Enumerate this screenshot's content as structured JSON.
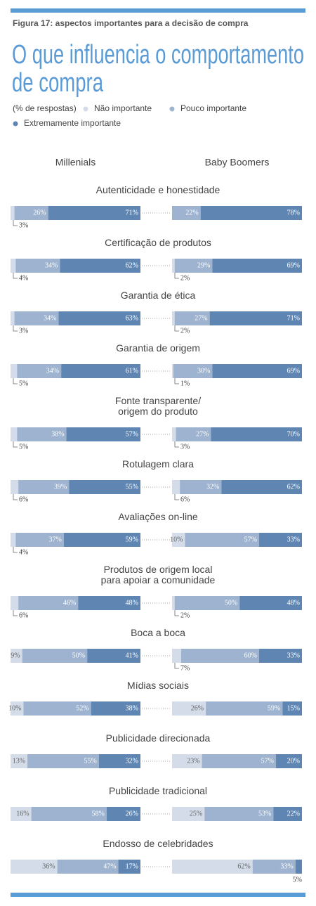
{
  "chart_data": {
    "type": "stacked-bar",
    "caption": "Figura 17: aspectos importantes para a decisão de compra",
    "title": [
      "O que influencia o comportamento",
      "de compra"
    ],
    "legend_title": "(% de respostas)",
    "legend": [
      {
        "name": "Não importante",
        "color": "#d3dce8"
      },
      {
        "name": "Pouco importante",
        "color": "#9db3cf"
      },
      {
        "name": "Extremamente importante",
        "color": "#5f86b3"
      }
    ],
    "categories": [
      "Autenticidade e honestidade",
      "Certificação de produtos",
      "Garantia de ética",
      "Garantia de origem",
      "Fonte transparente/\norigem do produto",
      "Rotulagem clara",
      "Avaliações on-line",
      "Produtos de origem local\npara apoiar a comunidade",
      "Boca a boca",
      "Mídias sociais",
      "Publicidade direcionada",
      "Publicidade tradicional",
      "Endosso de celebridades"
    ],
    "panels": [
      {
        "name": "Millenials",
        "series": [
          {
            "values": [
              3,
              4,
              3,
              5,
              5,
              6,
              4,
              6,
              9,
              10,
              13,
              16,
              36
            ],
            "value_labels": [
              "3%",
              "4%",
              "3%",
              "5%",
              "5%",
              "6%",
              "4%",
              "6%",
              "9%",
              "10%",
              "13%",
              "16%",
              "36%"
            ]
          },
          {
            "values": [
              26,
              34,
              34,
              34,
              38,
              39,
              37,
              46,
              50,
              52,
              55,
              58,
              47
            ],
            "value_labels": [
              "26%",
              "34%",
              "34%",
              "34%",
              "38%",
              "39%",
              "37%",
              "46%",
              "50%",
              "52%",
              "55%",
              "58%",
              "47%"
            ]
          },
          {
            "values": [
              71,
              62,
              63,
              61,
              57,
              55,
              59,
              48,
              41,
              38,
              32,
              26,
              17
            ],
            "value_labels": [
              "71%",
              "62%",
              "63%",
              "61%",
              "57%",
              "55%",
              "59%",
              "48%",
              "41%",
              "38%",
              "32%",
              "26%",
              "17%"
            ]
          }
        ]
      },
      {
        "name": "Baby Boomers",
        "series": [
          {
            "values": [
              null,
              2,
              2,
              1,
              3,
              6,
              10,
              2,
              7,
              26,
              23,
              25,
              62
            ],
            "value_labels": [
              null,
              "2%",
              "2%",
              "1%",
              "3%",
              "6%",
              "10%",
              "2%",
              "7%",
              "26%",
              "23%",
              "25%",
              "62%"
            ]
          },
          {
            "values": [
              22,
              29,
              27,
              30,
              27,
              32,
              57,
              50,
              60,
              59,
              57,
              53,
              33
            ],
            "value_labels": [
              "22%",
              "29%",
              "27%",
              "30%",
              "27%",
              "32%",
              "57%",
              "50%",
              "60%",
              "59%",
              "57%",
              "53%",
              "33%"
            ]
          },
          {
            "values": [
              78,
              69,
              71,
              69,
              70,
              62,
              33,
              48,
              33,
              15,
              20,
              22,
              5
            ],
            "value_labels": [
              "78%",
              "69%",
              "71%",
              "69%",
              "70%",
              "62%",
              "33%",
              "48%",
              "33%",
              "15%",
              "20%",
              "22%",
              "5%"
            ]
          }
        ]
      }
    ]
  }
}
